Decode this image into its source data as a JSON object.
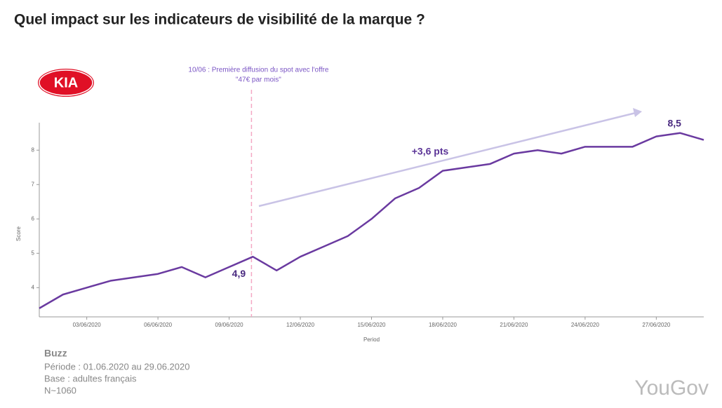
{
  "chart_data": {
    "type": "line",
    "title": "Quel impact sur les indicateurs de visibilité de la marque ?",
    "logo": "KIA",
    "x_label": "Period",
    "y_label": "Score",
    "categories": [
      null,
      null,
      "03/06/2020",
      null,
      null,
      "06/06/2020",
      null,
      null,
      "09/06/2020",
      null,
      null,
      "12/06/2020",
      null,
      null,
      "15/06/2020",
      null,
      null,
      "18/06/2020",
      null,
      null,
      "21/06/2020",
      null,
      null,
      "24/06/2020",
      null,
      null,
      "27/06/2020",
      null,
      null
    ],
    "series": [
      {
        "name": "Score",
        "color": "#6a3aa0",
        "values": [
          3.4,
          3.8,
          4.0,
          4.2,
          4.3,
          4.4,
          4.6,
          4.3,
          4.6,
          4.9,
          4.5,
          4.9,
          5.2,
          5.5,
          6.0,
          6.6,
          6.9,
          7.4,
          7.5,
          7.6,
          7.9,
          8.0,
          7.9,
          8.1,
          8.1,
          8.1,
          8.4,
          8.5,
          8.3
        ],
        "value_labels": [
          null,
          null,
          null,
          null,
          null,
          null,
          null,
          null,
          null,
          "4,9",
          null,
          null,
          null,
          null,
          null,
          null,
          null,
          null,
          null,
          null,
          null,
          null,
          null,
          null,
          null,
          null,
          null,
          "8,5",
          null
        ]
      }
    ],
    "ylim": [
      3.15,
      8.8
    ],
    "yticks": [
      4,
      5,
      6,
      7,
      8
    ],
    "grid": false,
    "annotations": [
      "10/06 : Première diffusion du spot avec l'offre",
      "\"47€ par mois\"",
      "+3,6 pts"
    ]
  },
  "footer": {
    "heading": "Buzz",
    "lines": [
      "Période : 01.06.2020 au 29.06.2020",
      "Base : adultes français",
      "N~1060"
    ],
    "brand": "YouGov"
  }
}
